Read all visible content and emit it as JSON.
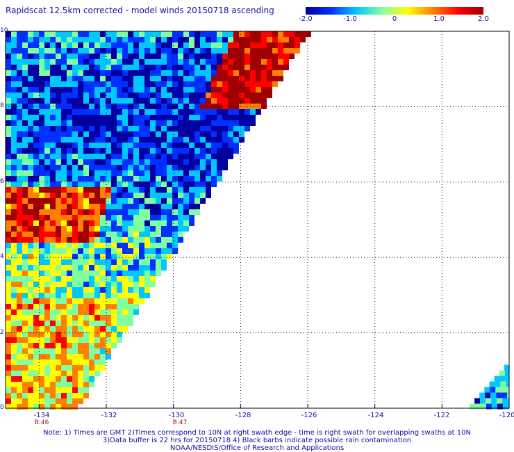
{
  "title": "Rapidscat 12.5km corrected - model winds 20150718 ascending",
  "colorbar": {
    "labels": [
      "-2.0",
      "-1.0",
      "0",
      "1.0",
      "2.0"
    ],
    "min": -2.0,
    "max": 2.0,
    "colors": [
      "#0000a0",
      "#0030ff",
      "#00c8ff",
      "#80ffa0",
      "#ffff00",
      "#ff8000",
      "#ff0000",
      "#a00000"
    ]
  },
  "axes": {
    "x_ticks": [
      "-134",
      "-132",
      "-130",
      "-128",
      "-126",
      "-124",
      "-122",
      "-120"
    ],
    "x_values": [
      -134,
      -132,
      -130,
      -128,
      -126,
      -124,
      -122,
      -120
    ],
    "y_ticks": [
      "0",
      "2",
      "4",
      "6",
      "8",
      "10"
    ],
    "y_values": [
      0,
      2,
      4,
      6,
      8,
      10
    ],
    "x_range": [
      -135,
      -120
    ],
    "y_range": [
      0,
      10
    ],
    "grid": "dotted"
  },
  "time_labels": [
    {
      "text": "B:46",
      "lon": -134
    },
    {
      "text": "B:47",
      "lon": -130
    }
  ],
  "swath": {
    "main_top_right_lon": -126,
    "main_bottom_right_lon": -132.9,
    "corner_left_lon": -121.3,
    "corner_top_lat": 1.3
  },
  "notes": [
    "Note: 1) Times are GMT 2)Times correspond to 10N at right swath edge - time is right swath for overlapping swaths at 10N",
    "3)Data buffer is 22 hrs for 20150718 4) Black barbs indicate possible rain contamination",
    "NOAA/NESDIS/Office of Research and Applications"
  ]
}
